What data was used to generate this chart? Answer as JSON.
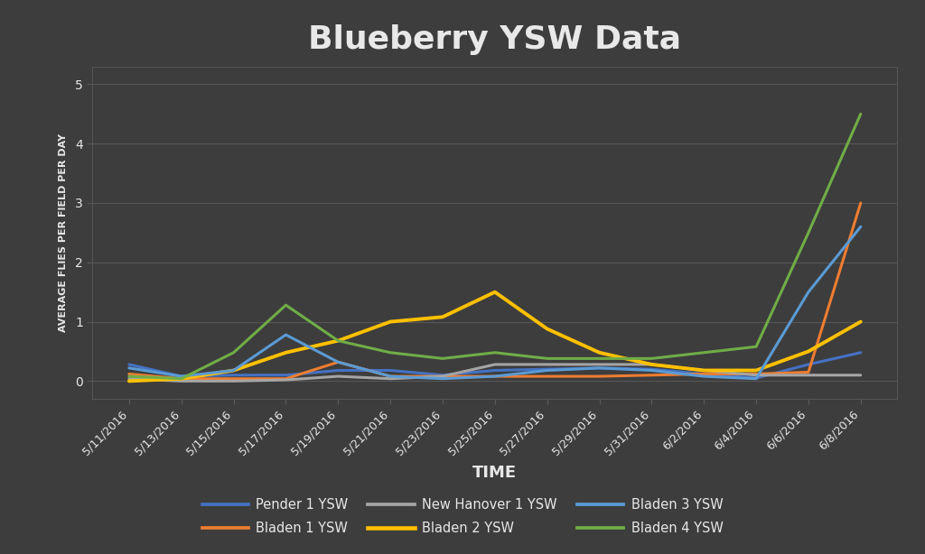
{
  "title": "Blueberry YSW Data",
  "xlabel": "TIME",
  "ylabel": "AVERAGE FLIES PER FIELD PER DAY",
  "ylim": [
    -0.3,
    5.3
  ],
  "yticks": [
    0,
    1,
    2,
    3,
    4,
    5
  ],
  "background_color": "#3d3d3d",
  "plot_bg_color": "#404040",
  "grid_color": "#5a5a5a",
  "text_color": "#e8e8e8",
  "dates": [
    "5/11/2016",
    "5/13/2016",
    "5/15/2016",
    "5/17/2016",
    "5/19/2016",
    "5/21/2016",
    "5/23/2016",
    "5/25/2016",
    "5/27/2016",
    "5/29/2016",
    "5/31/2016",
    "6/2/2016",
    "6/4/2016",
    "6/6/2016",
    "6/8/2016"
  ],
  "series": [
    {
      "label": "Pender 1 YSW",
      "color": "#4472c4",
      "linewidth": 2.2,
      "values": [
        0.28,
        0.08,
        0.1,
        0.1,
        0.18,
        0.18,
        0.1,
        0.18,
        0.2,
        0.22,
        0.2,
        0.12,
        0.05,
        0.28,
        0.48
      ]
    },
    {
      "label": "Bladen 1 YSW",
      "color": "#ed7d31",
      "linewidth": 2.2,
      "values": [
        0.12,
        0.04,
        0.04,
        0.04,
        0.32,
        0.08,
        0.08,
        0.08,
        0.08,
        0.08,
        0.1,
        0.12,
        0.12,
        0.15,
        3.0
      ]
    },
    {
      "label": "New Hanover 1 YSW",
      "color": "#a5a5a5",
      "linewidth": 2.2,
      "values": [
        0.04,
        0.0,
        0.0,
        0.02,
        0.08,
        0.04,
        0.08,
        0.28,
        0.28,
        0.28,
        0.28,
        0.18,
        0.1,
        0.1,
        0.1
      ]
    },
    {
      "label": "Bladen 2 YSW",
      "color": "#ffc000",
      "linewidth": 2.8,
      "values": [
        0.0,
        0.04,
        0.18,
        0.48,
        0.68,
        1.0,
        1.08,
        1.5,
        0.88,
        0.48,
        0.28,
        0.18,
        0.18,
        0.5,
        1.0
      ]
    },
    {
      "label": "Bladen 3 YSW",
      "color": "#5b9bd5",
      "linewidth": 2.2,
      "values": [
        0.22,
        0.08,
        0.18,
        0.78,
        0.32,
        0.08,
        0.04,
        0.08,
        0.18,
        0.22,
        0.18,
        0.08,
        0.04,
        1.5,
        2.6
      ]
    },
    {
      "label": "Bladen 4 YSW",
      "color": "#70ad47",
      "linewidth": 2.2,
      "values": [
        0.08,
        0.04,
        0.48,
        1.28,
        0.68,
        0.48,
        0.38,
        0.48,
        0.38,
        0.38,
        0.38,
        0.48,
        0.58,
        2.5,
        4.5
      ]
    }
  ],
  "legend_order": [
    0,
    1,
    2,
    3,
    4,
    5
  ],
  "title_fontsize": 26,
  "xlabel_fontsize": 13,
  "ylabel_fontsize": 8,
  "tick_fontsize": 9,
  "legend_fontsize": 10.5
}
